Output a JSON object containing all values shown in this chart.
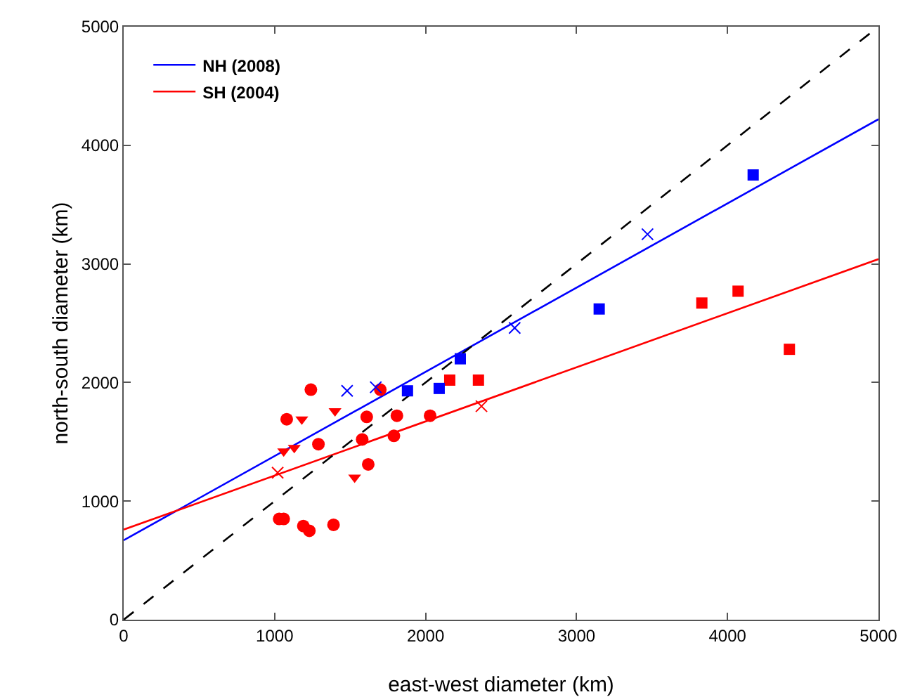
{
  "chart_data": {
    "type": "scatter",
    "xlabel": "east-west diameter (km)",
    "ylabel": "north-south diameter (km)",
    "xlim": [
      0,
      5000
    ],
    "ylim": [
      0,
      5000
    ],
    "xticks": [
      0,
      1000,
      2000,
      3000,
      4000,
      5000
    ],
    "yticks": [
      0,
      1000,
      2000,
      3000,
      4000,
      5000
    ],
    "grid": false,
    "legend": "top left",
    "series": [
      {
        "type": "line",
        "name": "NH (2008)",
        "color": "#0000ff",
        "marker": "none",
        "line_style": "solid",
        "x": [
          0,
          5000
        ],
        "values": [
          670,
          4220
        ]
      },
      {
        "type": "line",
        "name": "SH (2004)",
        "color": "#ff0000",
        "marker": "none",
        "line_style": "solid",
        "x": [
          0,
          5000
        ],
        "values": [
          760,
          3040
        ]
      },
      {
        "type": "line",
        "color": "#000000",
        "marker": "none",
        "line_style": "dashed",
        "x": [
          0,
          5000
        ],
        "values": [
          0,
          5000
        ]
      },
      {
        "color": "#ff0000",
        "marker": "circle",
        "x": [
          1240,
          1080,
          1290,
          1610,
          1580,
          1620,
          1700,
          1030,
          1060,
          1190,
          1230,
          1390,
          1790,
          1810,
          2030
        ],
        "values": [
          1940,
          1690,
          1480,
          1710,
          1520,
          1310,
          1940,
          850,
          850,
          790,
          750,
          800,
          1550,
          1720,
          1720
        ]
      },
      {
        "color": "#ff0000",
        "marker": "triangle",
        "x": [
          1060,
          1130,
          1180,
          1400,
          1530
        ],
        "values": [
          1420,
          1450,
          1690,
          1760,
          1200
        ]
      },
      {
        "color": "#ff0000",
        "marker": "square",
        "x": [
          2160,
          2350,
          3830,
          4070,
          4410
        ],
        "values": [
          2020,
          2020,
          2670,
          2770,
          2280
        ]
      },
      {
        "color": "#ff0000",
        "marker": "cross",
        "x": [
          1020,
          2370
        ],
        "values": [
          1240,
          1800
        ]
      },
      {
        "color": "#0000ff",
        "marker": "square",
        "x": [
          1880,
          2090,
          2230,
          3150,
          4170
        ],
        "values": [
          1930,
          1950,
          2200,
          2620,
          3750
        ]
      },
      {
        "color": "#0000ff",
        "marker": "cross",
        "x": [
          1480,
          1670,
          2590,
          3470
        ],
        "values": [
          1930,
          1960,
          2460,
          3250
        ]
      }
    ]
  }
}
